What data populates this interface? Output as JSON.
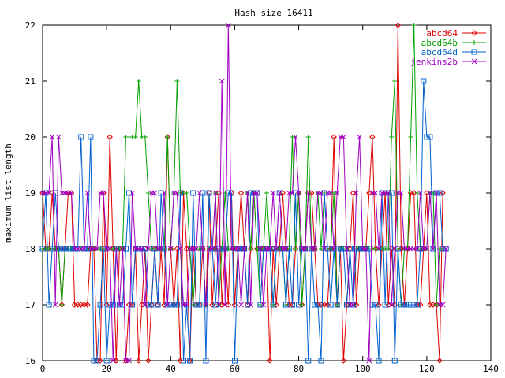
{
  "chart_data": {
    "type": "line",
    "title": "Hash size 16411",
    "xlabel": "",
    "ylabel": "maximum list length",
    "xlim": [
      0,
      140
    ],
    "ylim": [
      16,
      22
    ],
    "x_ticks": [
      "0",
      "20",
      "40",
      "60",
      "80",
      "100",
      "120",
      "140"
    ],
    "y_ticks": [
      "16",
      "17",
      "18",
      "19",
      "20",
      "21",
      "22"
    ],
    "grid": false,
    "legend_position": "top-right",
    "series": [
      {
        "name": "abcd64",
        "color": "#e00000",
        "marker": "diamond",
        "values": [
          19,
          18,
          18,
          19,
          18,
          18,
          17,
          18,
          19,
          19,
          17,
          17,
          17,
          17,
          17,
          18,
          18,
          16,
          16,
          19,
          17,
          20,
          18,
          16,
          18,
          18,
          16,
          17,
          17,
          18,
          16,
          17,
          18,
          16,
          17,
          18,
          17,
          18,
          17,
          20,
          18,
          17,
          18,
          16,
          19,
          18,
          16,
          18,
          17,
          17,
          18,
          17,
          19,
          17,
          18,
          19,
          17,
          18,
          17,
          19,
          17,
          18,
          19,
          18,
          17,
          18,
          19,
          18,
          18,
          18,
          18,
          16,
          18,
          17,
          18,
          19,
          18,
          17,
          17,
          18,
          19,
          17,
          18,
          19,
          19,
          18,
          17,
          17,
          17,
          17,
          18,
          20,
          17,
          18,
          16,
          17,
          18,
          19,
          17,
          18,
          18,
          18,
          19,
          20,
          18,
          17,
          18,
          19,
          17,
          18,
          17,
          22,
          18,
          17,
          18,
          19,
          19,
          17,
          17,
          18,
          19,
          17,
          17,
          17,
          16,
          19
        ]
      },
      {
        "name": "abcd64b",
        "color": "#00a000",
        "marker": "plus",
        "values": [
          18,
          18,
          18,
          18,
          18,
          18,
          17,
          18,
          18,
          18,
          18,
          18,
          18,
          18,
          18,
          18,
          18,
          18,
          18,
          18,
          18,
          18,
          18,
          18,
          18,
          18,
          20,
          20,
          20,
          20,
          21,
          20,
          20,
          19,
          18,
          18,
          18,
          18,
          18,
          20,
          18,
          19,
          21,
          19,
          19,
          19,
          18,
          17,
          18,
          18,
          18,
          17,
          18,
          18,
          19,
          17,
          18,
          19,
          18,
          18,
          18,
          18,
          18,
          18,
          19,
          18,
          19,
          18,
          17,
          18,
          19,
          18,
          17,
          18,
          18,
          18,
          17,
          18,
          20,
          18,
          19,
          17,
          18,
          20,
          18,
          18,
          19,
          18,
          19,
          18,
          18,
          19,
          17,
          18,
          18,
          18,
          17,
          17,
          18,
          18,
          18,
          18,
          18,
          18,
          18,
          18,
          18,
          18,
          18,
          20,
          21,
          18,
          17,
          18,
          18,
          20,
          22,
          19,
          18,
          18,
          18,
          19,
          19,
          17,
          18,
          18
        ]
      },
      {
        "name": "abcd64d",
        "color": "#0060d0",
        "marker": "square",
        "values": [
          18,
          19,
          17,
          18,
          19,
          18,
          18,
          18,
          18,
          18,
          18,
          18,
          20,
          18,
          18,
          20,
          16,
          16,
          17,
          18,
          16,
          17,
          17,
          18,
          17,
          17,
          18,
          19,
          17,
          18,
          18,
          18,
          18,
          17,
          17,
          18,
          17,
          19,
          18,
          17,
          17,
          17,
          17,
          19,
          16,
          17,
          16,
          19,
          17,
          17,
          19,
          16,
          19,
          18,
          17,
          18,
          18,
          18,
          19,
          19,
          16,
          18,
          18,
          18,
          17,
          19,
          19,
          19,
          17,
          18,
          18,
          18,
          17,
          18,
          19,
          18,
          17,
          18,
          17,
          19,
          17,
          18,
          18,
          16,
          18,
          17,
          17,
          16,
          19,
          18,
          17,
          18,
          17,
          18,
          18,
          17,
          18,
          17,
          18,
          18,
          18,
          18,
          18,
          17,
          17,
          16,
          19,
          17,
          19,
          19,
          16,
          18,
          17,
          17,
          17,
          17,
          17,
          17,
          18,
          21,
          20,
          20,
          18,
          19,
          19,
          18,
          18
        ]
      },
      {
        "name": "jenkins2b",
        "color": "#a000c0",
        "marker": "cross",
        "values": [
          19,
          19,
          19,
          20,
          17,
          20,
          19,
          19,
          19,
          19,
          18,
          18,
          18,
          18,
          19,
          18,
          18,
          18,
          19,
          19,
          18,
          18,
          16,
          18,
          17,
          18,
          16,
          16,
          19,
          18,
          18,
          18,
          17,
          18,
          19,
          19,
          18,
          18,
          19,
          17,
          18,
          19,
          19,
          18,
          17,
          17,
          18,
          18,
          18,
          19,
          18,
          17,
          18,
          18,
          19,
          17,
          21,
          17,
          22,
          18,
          18,
          18,
          17,
          18,
          19,
          17,
          19,
          19,
          18,
          17,
          18,
          18,
          19,
          18,
          19,
          18,
          18,
          19,
          19,
          20,
          19,
          18,
          18,
          19,
          18,
          18,
          19,
          19,
          18,
          19,
          19,
          18,
          19,
          20,
          20,
          18,
          17,
          17,
          19,
          20,
          18,
          18,
          16,
          19,
          19,
          18,
          19,
          19,
          19,
          17,
          18,
          19,
          19,
          18,
          18,
          18,
          18,
          18,
          19,
          18,
          18,
          19,
          18,
          19,
          17,
          17,
          18
        ]
      }
    ]
  }
}
